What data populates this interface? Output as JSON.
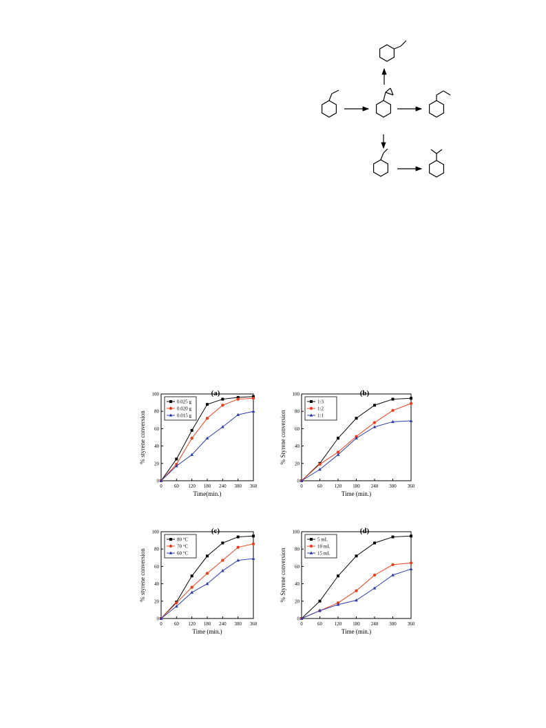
{
  "scheme": {
    "description_nodes": [
      "styrene",
      "styrene oxide",
      "phenylacetaldehyde",
      "alpha-methylstyrene",
      "cumene",
      "sec-butylbenzene"
    ]
  },
  "colors": {
    "black": "#000000",
    "red": "#e8401c",
    "blue": "#2a3dab"
  },
  "chart_data": [
    {
      "type": "line",
      "panel_label": "(a)",
      "xlabel": "Time(min.)",
      "ylabel": "% styrene conversion",
      "x": [
        0,
        60,
        120,
        180,
        240,
        300,
        360
      ],
      "xlim": [
        0,
        360
      ],
      "ylim": [
        0,
        100
      ],
      "yticks": [
        0,
        20,
        40,
        60,
        80,
        100
      ],
      "legend_position": "top-left",
      "series": [
        {
          "name": "0.025 g",
          "marker": "square",
          "color": "#000000",
          "values": [
            0,
            25,
            58,
            88,
            94,
            96,
            97
          ]
        },
        {
          "name": "0.020 g",
          "marker": "circle",
          "color": "#e8401c",
          "values": [
            0,
            19,
            49,
            72,
            87,
            94,
            95
          ]
        },
        {
          "name": "0.015 g",
          "marker": "triangle",
          "color": "#2a3dab",
          "values": [
            0,
            17,
            30,
            49,
            62,
            76,
            80
          ]
        }
      ]
    },
    {
      "type": "line",
      "panel_label": "(b)",
      "xlabel": "Time (min.)",
      "ylabel": "% Styrene conversion",
      "x": [
        0,
        60,
        120,
        180,
        240,
        300,
        360
      ],
      "xlim": [
        0,
        360
      ],
      "ylim": [
        0,
        100
      ],
      "yticks": [
        0,
        20,
        40,
        60,
        80,
        100
      ],
      "legend_position": "top-left",
      "series": [
        {
          "name": "1:3",
          "marker": "square",
          "color": "#000000",
          "values": [
            0,
            20,
            49,
            72,
            87,
            94,
            95
          ]
        },
        {
          "name": "1:2",
          "marker": "circle",
          "color": "#e8401c",
          "values": [
            0,
            19,
            33,
            51,
            67,
            81,
            89
          ]
        },
        {
          "name": "1:1",
          "marker": "triangle",
          "color": "#2a3dab",
          "values": [
            0,
            13,
            30,
            49,
            62,
            68,
            69
          ]
        }
      ]
    },
    {
      "type": "line",
      "panel_label": "(c)",
      "xlabel": "Time (min.)",
      "ylabel": "% styrene conversion",
      "x": [
        0,
        60,
        120,
        180,
        240,
        300,
        360
      ],
      "xlim": [
        0,
        360
      ],
      "ylim": [
        0,
        100
      ],
      "yticks": [
        0,
        20,
        40,
        60,
        80,
        100
      ],
      "legend_position": "top-left",
      "series": [
        {
          "name": "80 °C",
          "marker": "square",
          "color": "#000000",
          "values": [
            0,
            19,
            49,
            72,
            87,
            94,
            95
          ]
        },
        {
          "name": "70 °C",
          "marker": "circle",
          "color": "#e8401c",
          "values": [
            0,
            18,
            36,
            52,
            67,
            82,
            86
          ]
        },
        {
          "name": "60 °C",
          "marker": "triangle",
          "color": "#2a3dab",
          "values": [
            0,
            14,
            30,
            40,
            55,
            67,
            69
          ]
        }
      ]
    },
    {
      "type": "line",
      "panel_label": "(d)",
      "xlabel": "Time (min.)",
      "ylabel": "% Styrene conversion",
      "x": [
        0,
        60,
        120,
        180,
        240,
        300,
        360
      ],
      "xlim": [
        0,
        360
      ],
      "ylim": [
        0,
        100
      ],
      "yticks": [
        0,
        20,
        40,
        60,
        80,
        100
      ],
      "legend_position": "top-left",
      "series": [
        {
          "name": "5 mL",
          "marker": "square",
          "color": "#000000",
          "values": [
            0,
            20,
            49,
            72,
            87,
            94,
            95
          ]
        },
        {
          "name": "10 mL",
          "marker": "circle",
          "color": "#e8401c",
          "values": [
            0,
            9,
            18,
            32,
            50,
            62,
            64
          ]
        },
        {
          "name": "15 mL",
          "marker": "triangle",
          "color": "#2a3dab",
          "values": [
            0,
            9,
            16,
            21,
            35,
            50,
            57
          ]
        }
      ]
    }
  ]
}
